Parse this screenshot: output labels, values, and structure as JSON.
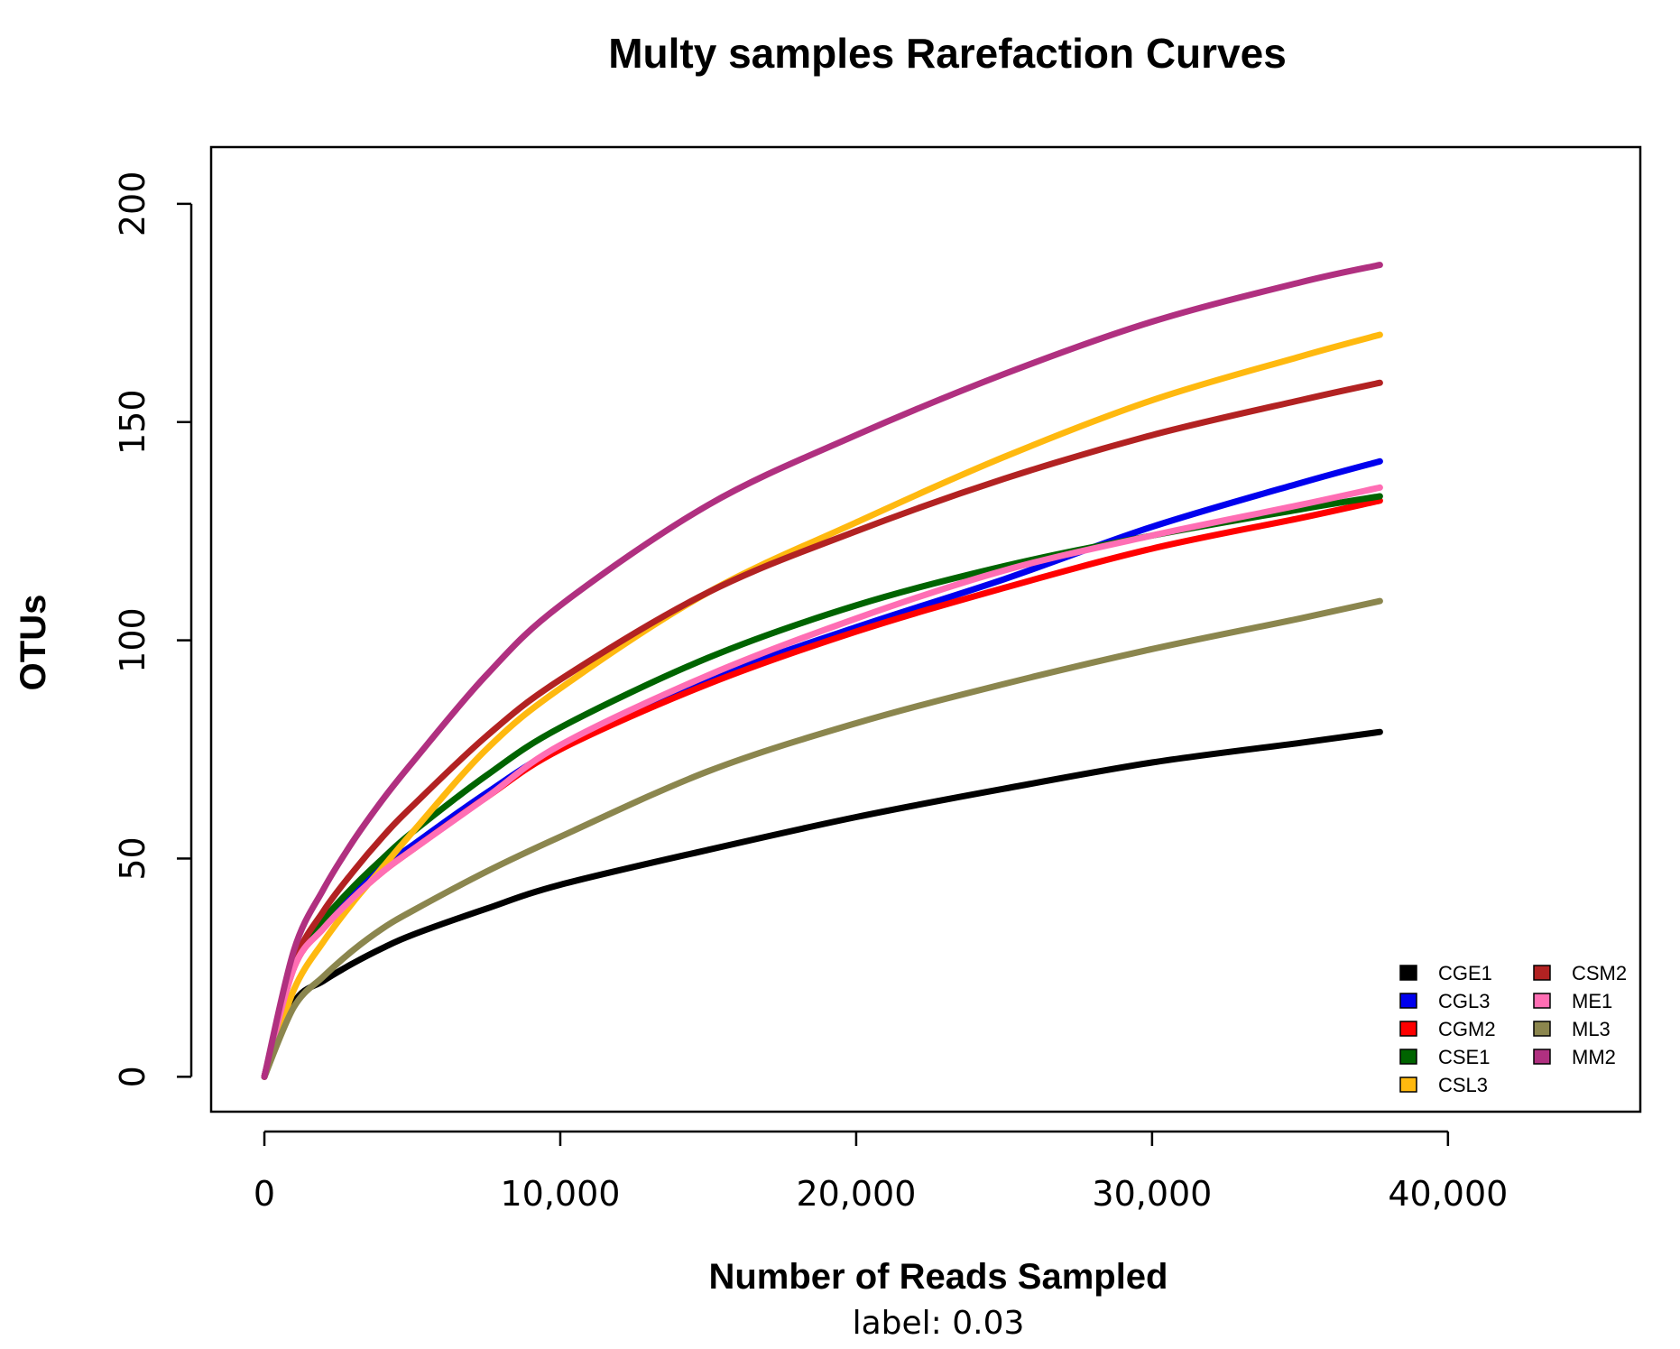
{
  "chart_data": {
    "type": "line",
    "title": "Multy samples Rarefaction Curves",
    "xlabel": "Number of Reads Sampled",
    "xsublabel": "label: 0.03",
    "ylabel": "OTUs",
    "xlim": [
      -1800,
      46500
    ],
    "ylim": [
      -8,
      213
    ],
    "xticks": [
      0,
      10000,
      20000,
      30000,
      40000
    ],
    "xtick_labels": [
      "0",
      "10,000",
      "20,000",
      "30,000",
      "40,000"
    ],
    "yticks": [
      0,
      50,
      100,
      150,
      200
    ],
    "ytick_labels": [
      "0",
      "50",
      "100",
      "150",
      "200"
    ],
    "legend_position": "bottom-right",
    "x": [
      0,
      1000,
      2000,
      3000,
      4000,
      5000,
      7500,
      10000,
      15000,
      20000,
      25000,
      30000,
      35000,
      37700
    ],
    "series": [
      {
        "name": "CGE1",
        "color": "#000000",
        "values": [
          0,
          17,
          22,
          26,
          29.5,
          32.5,
          38.5,
          44,
          52,
          59.5,
          66,
          72,
          76.5,
          79
        ]
      },
      {
        "name": "CGL3",
        "color": "#0000ee",
        "values": [
          0,
          26,
          35,
          42,
          48,
          53,
          65,
          75.5,
          91,
          103,
          114,
          126,
          136,
          141
        ]
      },
      {
        "name": "CGM2",
        "color": "#ff0000",
        "values": [
          0,
          25,
          34,
          41,
          47,
          52,
          64,
          75,
          90,
          102,
          112,
          121,
          128,
          132
        ]
      },
      {
        "name": "CSE1",
        "color": "#006400",
        "values": [
          0,
          26,
          36,
          43.5,
          50,
          56,
          69,
          80,
          96,
          108,
          117,
          124,
          130,
          133
        ]
      },
      {
        "name": "CSL3",
        "color": "#ffb90f",
        "values": [
          0,
          20,
          31,
          40,
          48,
          56,
          75,
          89,
          111,
          127,
          142,
          155,
          165,
          170
        ]
      },
      {
        "name": "CSM2",
        "color": "#b22222",
        "values": [
          0,
          26,
          38,
          47,
          55,
          62,
          78,
          91,
          111,
          125,
          137,
          147,
          155,
          159
        ]
      },
      {
        "name": "ME1",
        "color": "#ff6eb4",
        "values": [
          0,
          25,
          34,
          41,
          47,
          52,
          64,
          76,
          92,
          105,
          116,
          124,
          131,
          135
        ]
      },
      {
        "name": "ML3",
        "color": "#8b864e",
        "values": [
          0,
          16,
          23,
          29,
          34,
          38,
          47,
          55,
          70,
          81,
          90,
          98,
          105,
          109
        ]
      },
      {
        "name": "MM2",
        "color": "#b03080",
        "values": [
          0,
          29,
          43,
          54,
          63.5,
          72,
          92,
          108,
          131,
          147,
          161,
          173,
          182,
          186
        ]
      }
    ]
  }
}
